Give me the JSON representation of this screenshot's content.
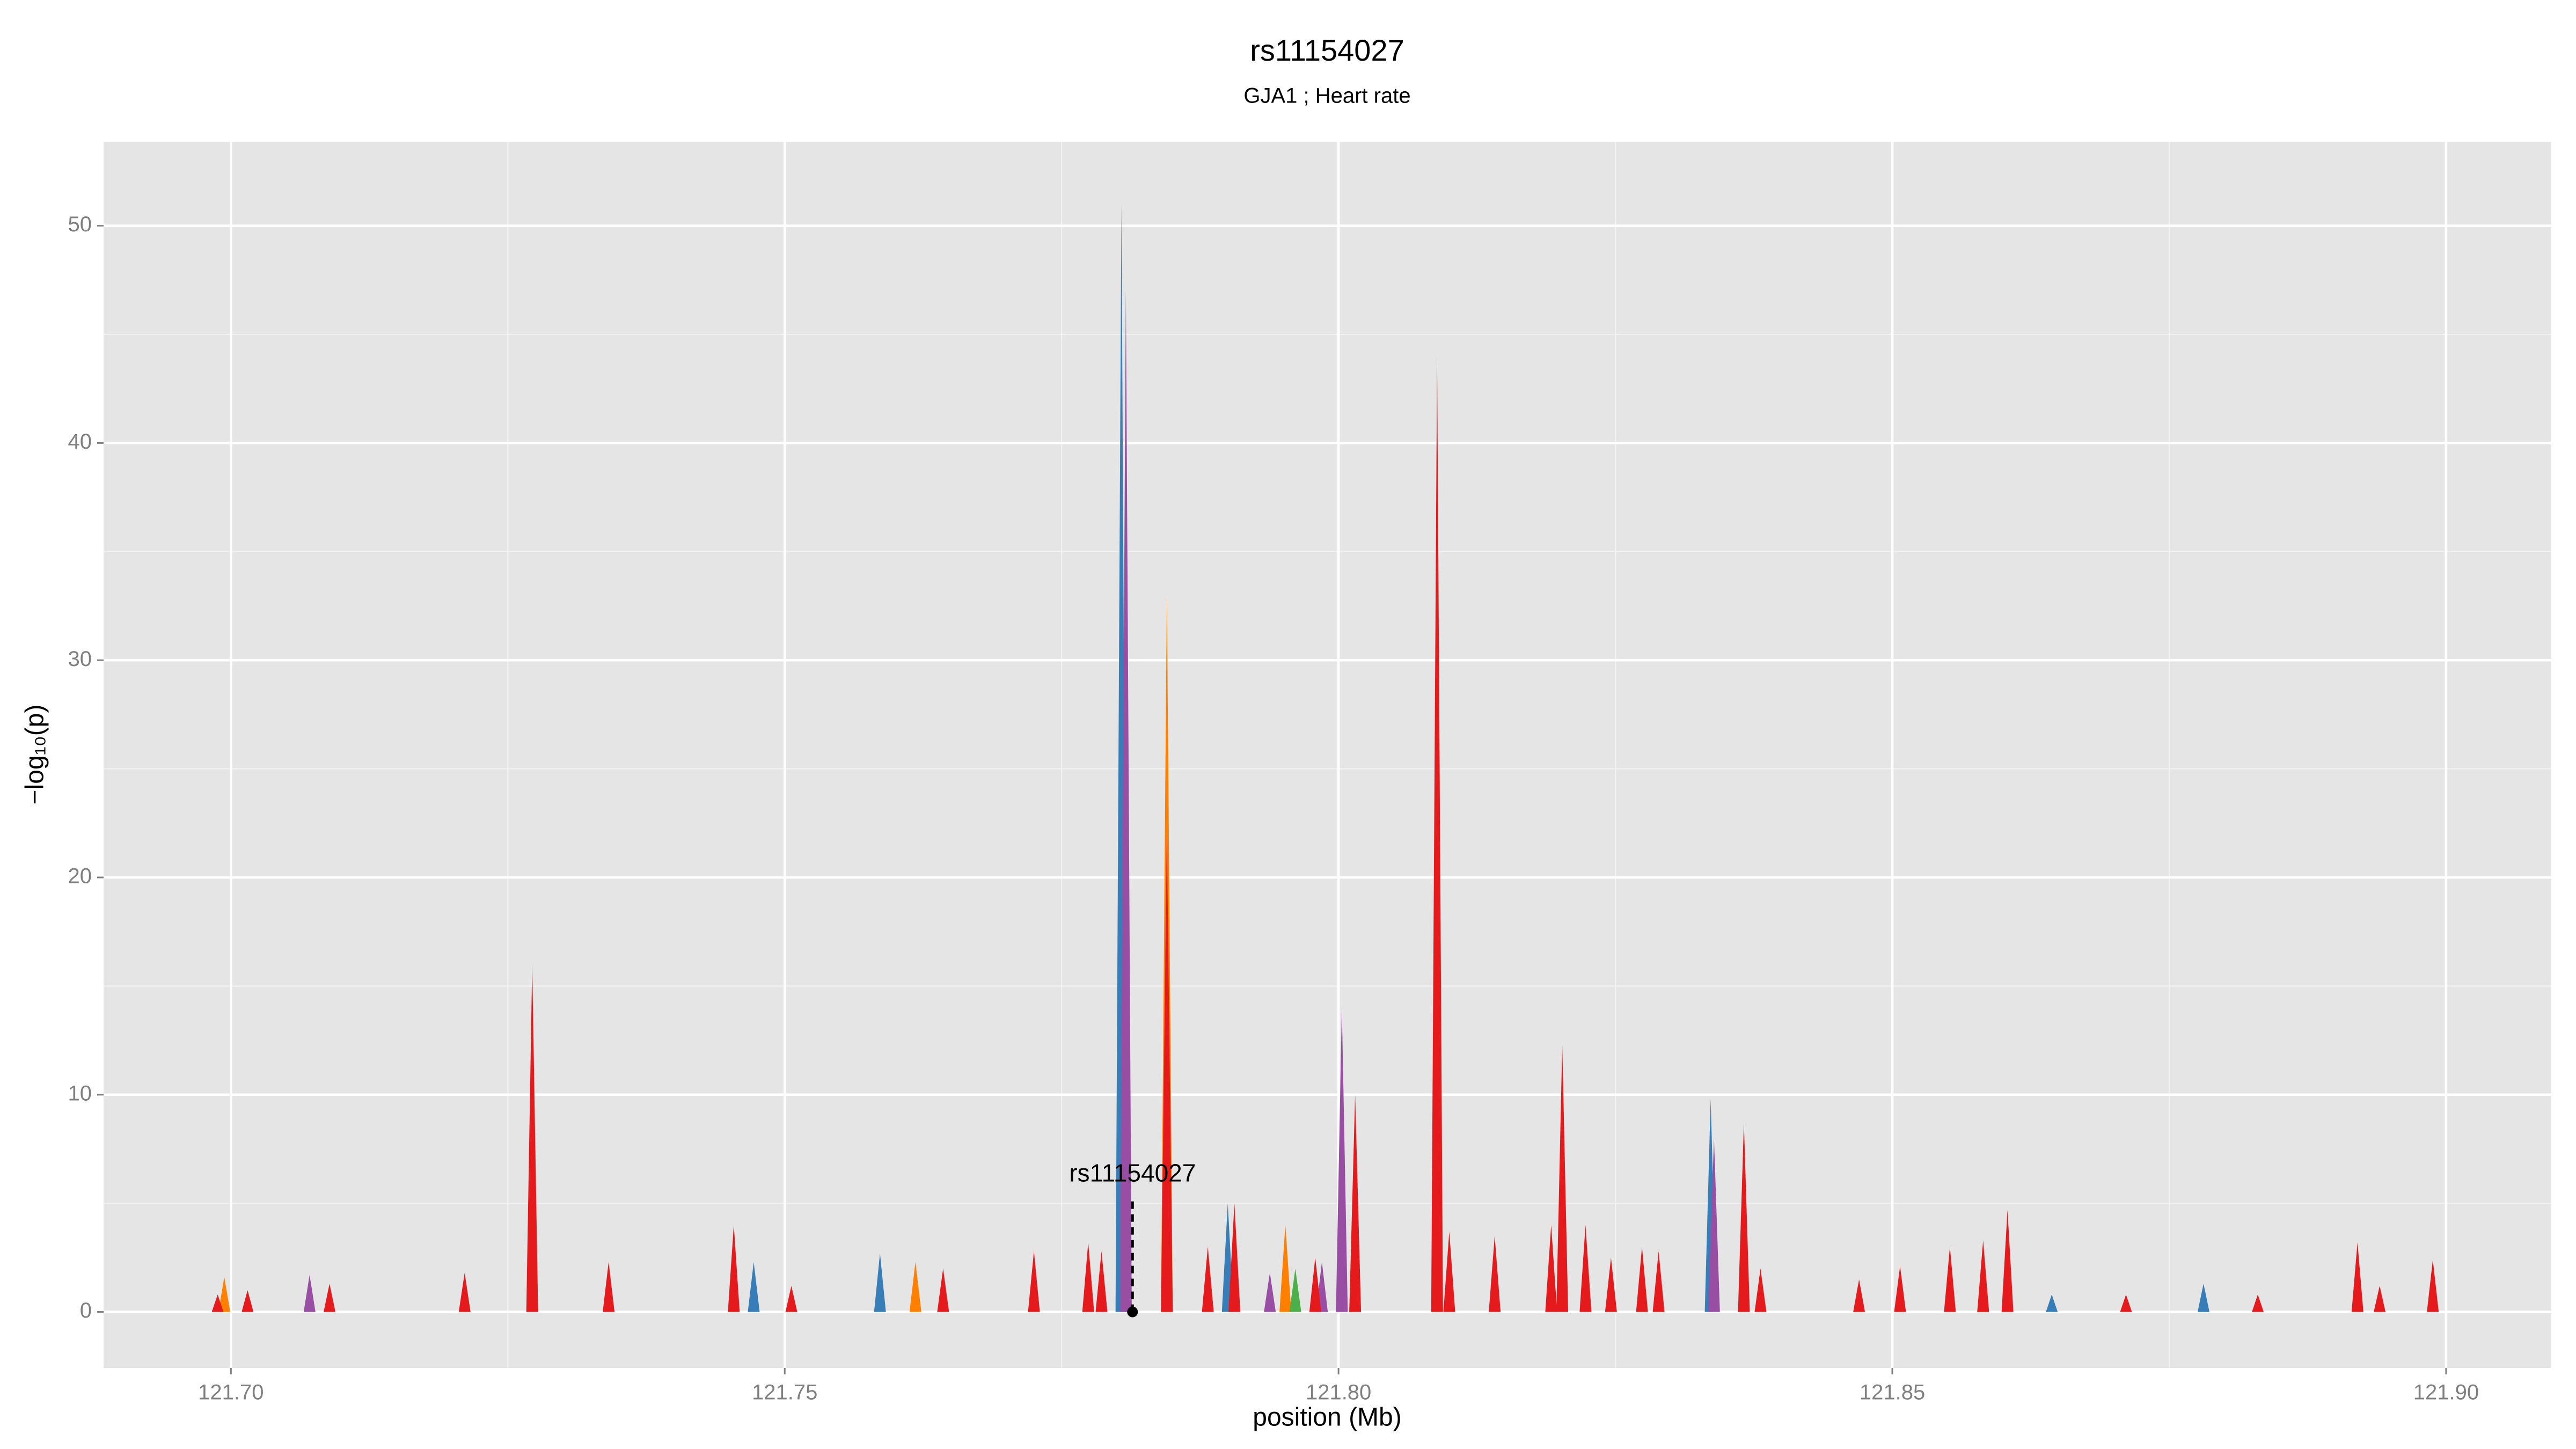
{
  "chart_data": {
    "type": "area",
    "title": "rs11154027",
    "subtitle": "GJA1 ; Heart rate",
    "xlabel": "position (Mb)",
    "ylabel": "−log₁₀(p)",
    "xlim": [
      121.6885,
      121.9095
    ],
    "ylim": [
      -2.58,
      53.87
    ],
    "xticks": [
      {
        "value": 121.7,
        "label": "121.70"
      },
      121.75,
      {
        "value": 121.8,
        "label": "121.80"
      },
      121.85,
      {
        "value": 121.9,
        "label": "121.90"
      }
    ],
    "yticks": [
      0,
      10,
      20,
      30,
      40,
      50
    ],
    "xminor": [
      121.725,
      121.775,
      121.825,
      121.875
    ],
    "yminor": [
      5,
      15,
      25,
      35,
      45
    ],
    "grid": true,
    "background": "#e5e5e5",
    "series": [
      {
        "color": "#377eb8",
        "x": [
          121.7804,
          121.7472,
          121.7586,
          121.79,
          121.8336,
          121.8644,
          121.8781
        ],
        "values": [
          51,
          2.3,
          2.7,
          5,
          9.8,
          0.8,
          1.3
        ]
      },
      {
        "color": "#984ea3",
        "x": [
          121.7808,
          121.8003,
          121.8339,
          121.7071,
          121.7938,
          121.7985
        ],
        "values": [
          47,
          14,
          8,
          1.7,
          1.8,
          2.3
        ]
      },
      {
        "color": "#ff7f00",
        "x": [
          121.7845,
          121.6994,
          121.7618,
          121.7952,
          121.8582
        ],
        "values": [
          33,
          1.6,
          2.3,
          4,
          3
        ]
      },
      {
        "color": "#4daf4a",
        "x": [
          121.7961
        ],
        "values": [
          2
        ]
      },
      {
        "color": "#e41a1c",
        "x": [
          121.6988,
          121.7015,
          121.7089,
          121.7211,
          121.7272,
          121.7341,
          121.7454,
          121.7506,
          121.7643,
          121.7725,
          121.7774,
          121.7786,
          121.7845,
          121.7882,
          121.7906,
          121.7979,
          121.8015,
          121.8089,
          121.81,
          121.8141,
          121.8192,
          121.8202,
          121.8223,
          121.8246,
          121.8274,
          121.8289,
          121.8366,
          121.8381,
          121.847,
          121.8507,
          121.8552,
          121.8582,
          121.8604,
          121.8711,
          121.883,
          121.892,
          121.894,
          121.8988
        ],
        "values": [
          0.8,
          1.0,
          1.3,
          1.8,
          16,
          2.3,
          4,
          1.2,
          2,
          2.8,
          3.2,
          2.8,
          22,
          3,
          5,
          2.5,
          10,
          44,
          3.7,
          3.5,
          4,
          12.3,
          4,
          2.5,
          3,
          2.8,
          8.7,
          2,
          1.5,
          2.1,
          3,
          3.3,
          4.7,
          0.8,
          0.8,
          3.2,
          1.2,
          2.4
        ]
      }
    ],
    "annotation": {
      "text": "rs11154027",
      "x": 121.7814,
      "y": 0
    }
  }
}
